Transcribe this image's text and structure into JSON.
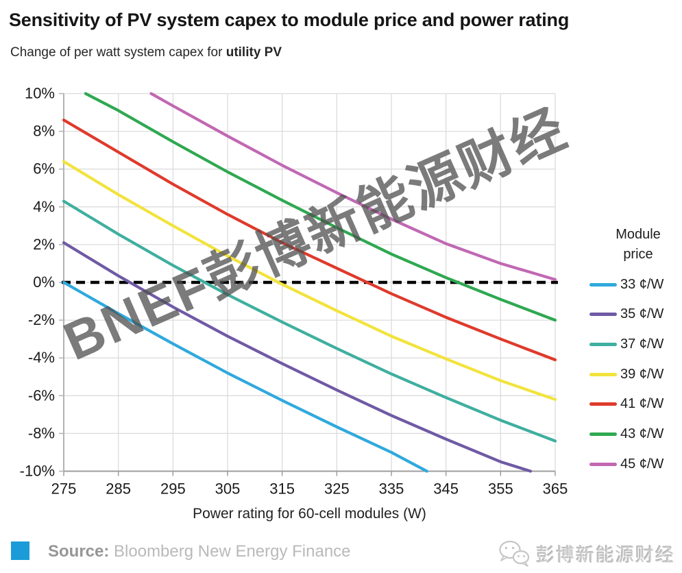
{
  "header": {
    "title": "Sensitivity of PV system capex to module price and power rating",
    "subtitle_prefix": "Change of per watt system capex for ",
    "subtitle_bold": "utility PV"
  },
  "watermark": {
    "text": "BNEF彭博新能源财经"
  },
  "chart_data": {
    "type": "line",
    "title": "Sensitivity of PV system capex to module price and power rating",
    "xlabel": "Power rating for 60-cell modules (W)",
    "ylabel": "Change of per watt system capex (%)",
    "xlim": [
      275,
      365
    ],
    "ylim": [
      -10,
      10
    ],
    "grid": true,
    "x_ticks": [
      275,
      285,
      295,
      305,
      315,
      325,
      335,
      345,
      355,
      365
    ],
    "y_tick_values": [
      10,
      8,
      6,
      4,
      2,
      0,
      -2,
      -4,
      -6,
      -8,
      -10
    ],
    "y_tick_labels": [
      "10%",
      "8%",
      "6%",
      "4%",
      "2%",
      "0%",
      "-2%",
      "-4%",
      "-6%",
      "-8%",
      "-10%"
    ],
    "zero_line": {
      "value": 0,
      "style": "dashed",
      "color": "#000000"
    },
    "legend_title": "Module\nprice",
    "legend_position": "right",
    "series": [
      {
        "name": "33 ¢/W",
        "color": "#2FA9DD",
        "points": [
          [
            275,
            0.0
          ],
          [
            285,
            -1.65
          ],
          [
            295,
            -3.25
          ],
          [
            305,
            -4.8
          ],
          [
            315,
            -6.25
          ],
          [
            325,
            -7.65
          ],
          [
            335,
            -9.0
          ],
          [
            341.5,
            -10
          ]
        ]
      },
      {
        "name": "35 ¢/W",
        "color": "#6F5AA5",
        "points": [
          [
            275,
            2.1
          ],
          [
            285,
            0.35
          ],
          [
            295,
            -1.3
          ],
          [
            305,
            -2.85
          ],
          [
            315,
            -4.3
          ],
          [
            325,
            -5.7
          ],
          [
            335,
            -7.05
          ],
          [
            345,
            -8.3
          ],
          [
            355,
            -9.5
          ],
          [
            360.5,
            -10
          ]
        ]
      },
      {
        "name": "37 ¢/W",
        "color": "#3FAF9F",
        "points": [
          [
            275,
            4.3
          ],
          [
            285,
            2.55
          ],
          [
            295,
            0.9
          ],
          [
            305,
            -0.65
          ],
          [
            315,
            -2.1
          ],
          [
            325,
            -3.5
          ],
          [
            335,
            -4.85
          ],
          [
            345,
            -6.1
          ],
          [
            355,
            -7.3
          ],
          [
            365,
            -8.4
          ]
        ]
      },
      {
        "name": "39 ¢/W",
        "color": "#F2E33C",
        "points": [
          [
            275,
            6.4
          ],
          [
            285,
            4.65
          ],
          [
            295,
            3.0
          ],
          [
            305,
            1.4
          ],
          [
            315,
            -0.1
          ],
          [
            325,
            -1.5
          ],
          [
            335,
            -2.85
          ],
          [
            345,
            -4.05
          ],
          [
            355,
            -5.2
          ],
          [
            365,
            -6.2
          ]
        ]
      },
      {
        "name": "41 ¢/W",
        "color": "#DF3A2C",
        "points": [
          [
            275,
            8.6
          ],
          [
            285,
            6.9
          ],
          [
            295,
            5.2
          ],
          [
            305,
            3.6
          ],
          [
            315,
            2.1
          ],
          [
            325,
            0.75
          ],
          [
            335,
            -0.6
          ],
          [
            345,
            -1.85
          ],
          [
            355,
            -3.0
          ],
          [
            365,
            -4.1
          ]
        ]
      },
      {
        "name": "43 ¢/W",
        "color": "#2FA851",
        "points": [
          [
            279,
            10
          ],
          [
            285,
            9.1
          ],
          [
            295,
            7.45
          ],
          [
            305,
            5.85
          ],
          [
            315,
            4.35
          ],
          [
            325,
            2.9
          ],
          [
            335,
            1.5
          ],
          [
            345,
            0.25
          ],
          [
            355,
            -0.9
          ],
          [
            365,
            -2.0
          ]
        ]
      },
      {
        "name": "45 ¢/W",
        "color": "#C168B3",
        "points": [
          [
            291,
            10
          ],
          [
            295,
            9.35
          ],
          [
            305,
            7.75
          ],
          [
            315,
            6.2
          ],
          [
            325,
            4.75
          ],
          [
            335,
            3.35
          ],
          [
            345,
            2.05
          ],
          [
            355,
            1.0
          ],
          [
            365,
            0.15
          ]
        ]
      }
    ]
  },
  "footer": {
    "source_label": "Source:",
    "source_text": " Bloomberg New Energy Finance",
    "accent_color": "#1B9CD8",
    "wechat_account": "彭博新能源财经",
    "wechat_icon": "wechat-chat-bubbles"
  }
}
